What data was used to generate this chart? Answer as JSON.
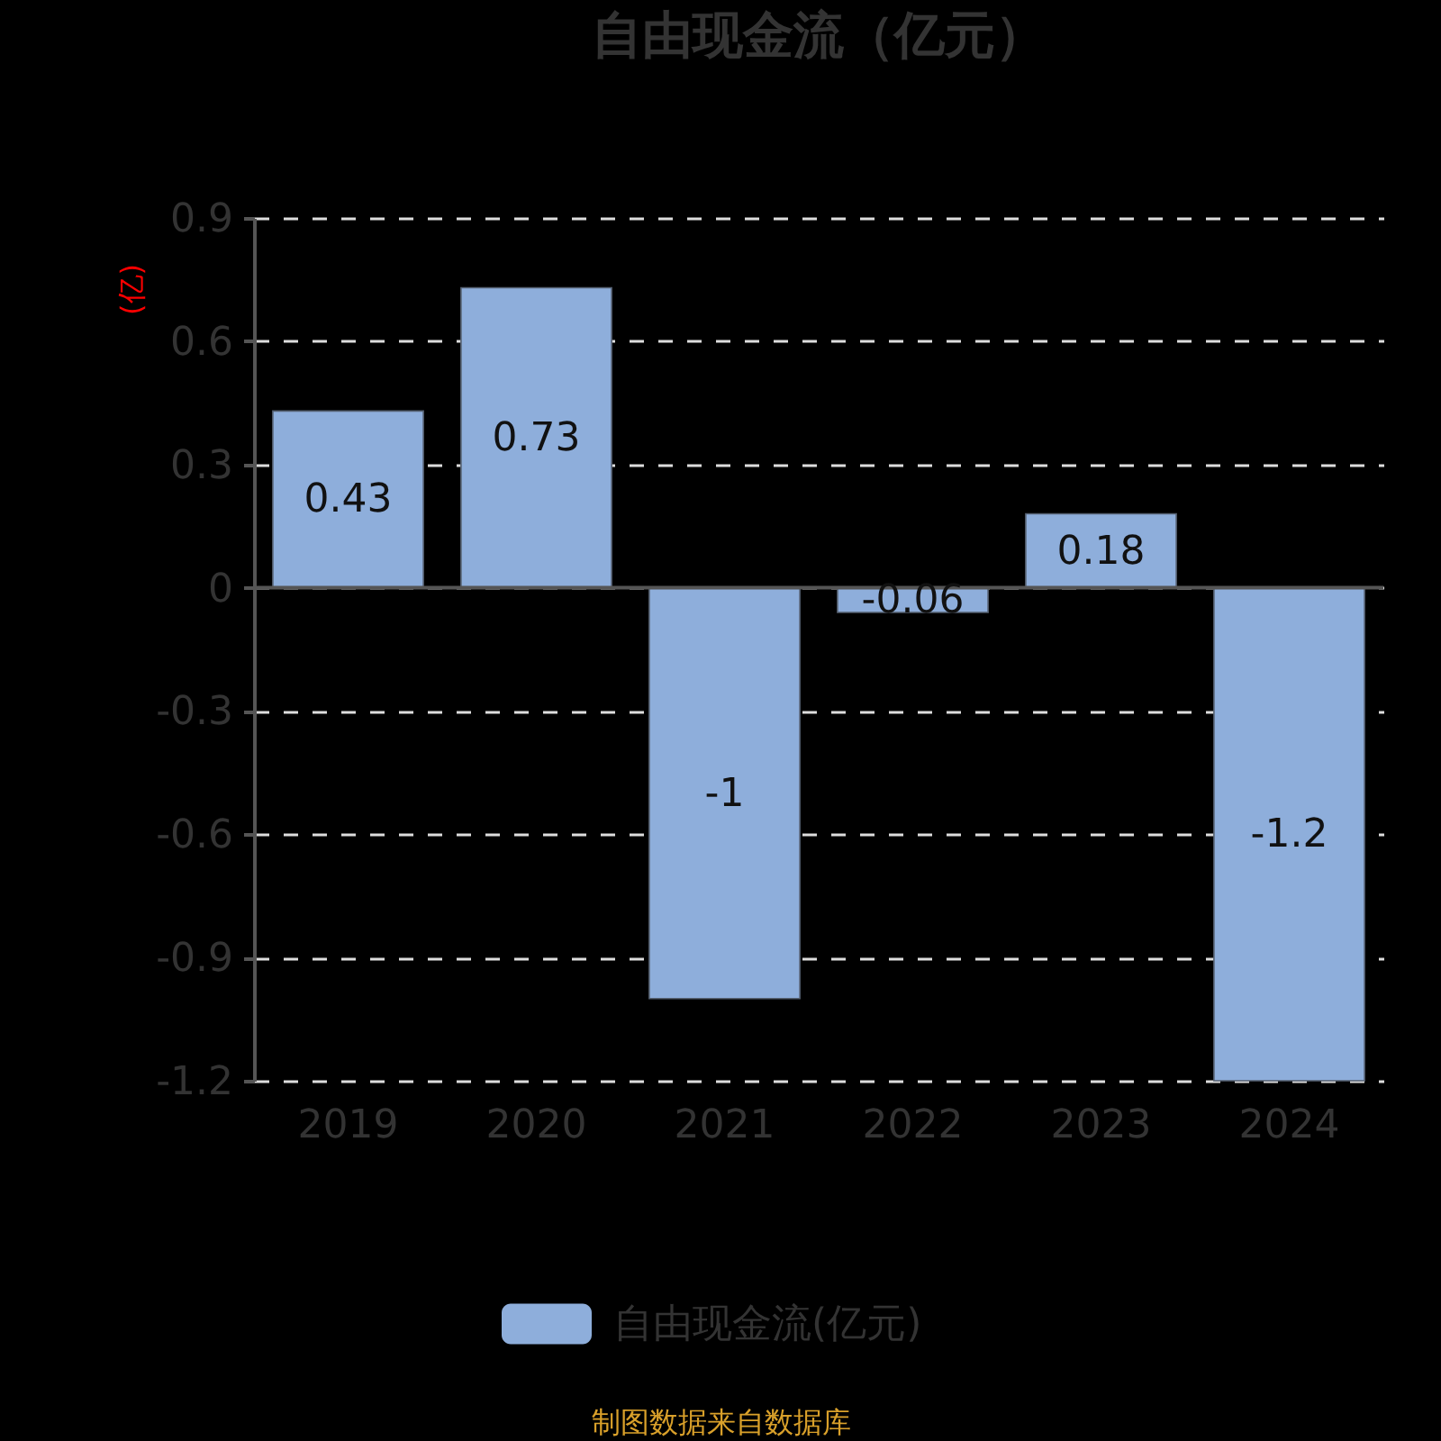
{
  "chart_data": {
    "type": "bar",
    "title": "自由现金流（亿元）",
    "ylabel": "(亿)",
    "categories": [
      "2019",
      "2020",
      "2021",
      "2022",
      "2023",
      "2024"
    ],
    "series": [
      {
        "name": "自由现金流(亿元)",
        "color": "#8eaedb",
        "values": [
          0.43,
          0.73,
          -1,
          -0.06,
          0.18,
          -1.2
        ]
      }
    ],
    "ylim": [
      -1.2,
      0.9
    ],
    "yticks": [
      -1.2,
      -0.9,
      -0.6,
      -0.3,
      0,
      0.3,
      0.6,
      0.9
    ],
    "grid": "y",
    "legend": "bottom",
    "data_labels": true,
    "annotations": [
      "制图数据来自数据库"
    ]
  }
}
